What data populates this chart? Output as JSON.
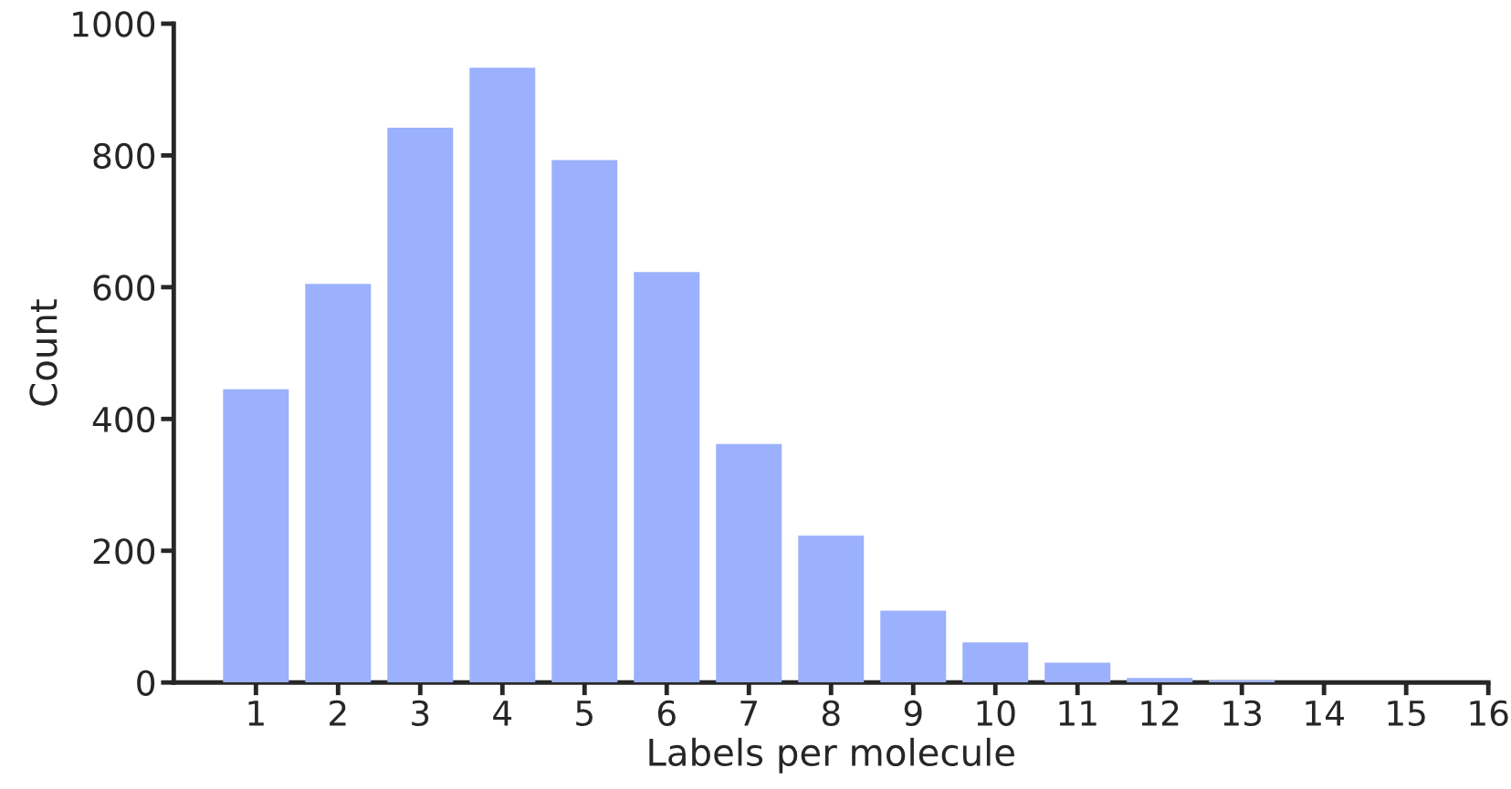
{
  "chart_data": {
    "type": "bar",
    "xlabel": "Labels per molecule",
    "ylabel": "Count",
    "x": [
      1,
      2,
      3,
      4,
      5,
      6,
      7,
      8,
      9,
      10,
      11,
      12,
      13
    ],
    "values": [
      445,
      605,
      842,
      933,
      793,
      623,
      362,
      223,
      109,
      61,
      30,
      7,
      3
    ],
    "color": "#9bb1fd",
    "xlim": [
      0,
      16
    ],
    "xticks": [
      1,
      2,
      3,
      4,
      5,
      6,
      7,
      8,
      9,
      10,
      11,
      12,
      13,
      14,
      15,
      16
    ],
    "ylim": [
      0,
      1000
    ],
    "yticks": [
      0,
      200,
      400,
      600,
      800,
      1000
    ],
    "grid": false,
    "legend": false
  }
}
